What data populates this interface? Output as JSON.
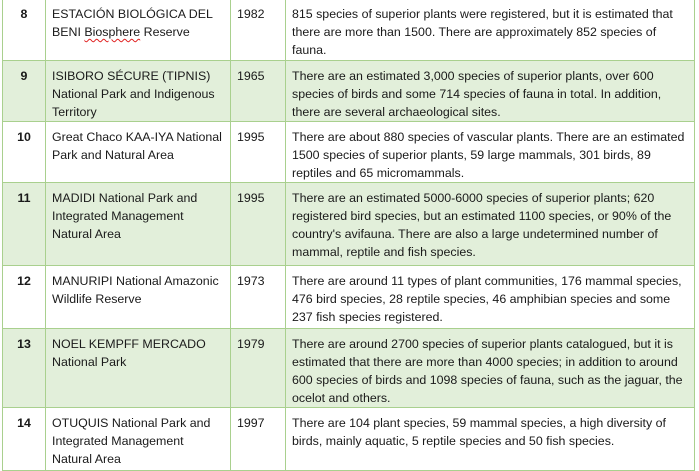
{
  "rows": [
    {
      "number": "8",
      "name": "ESTACIÓN BIOLÓGICA DEL BENI",
      "name_suffix": "Biosphere",
      "name_end": " Reserve",
      "year": "1982",
      "description": "815 species of superior plants were registered, but it is estimated that there are more than 1500. There are approximately 852 species of fauna.",
      "shaded": false
    },
    {
      "number": "9",
      "name": "ISIBORO SÉCURE (TIPNIS) National Park and Indigenous Territory",
      "year": "1965",
      "description": "There are an estimated 3,000 species of superior plants, over 600 species of birds and some 714 species of fauna in total. In addition, there are several archaeological sites.",
      "shaded": true
    },
    {
      "number": "10",
      "name": "Great Chaco KAA-IYA National Park and Natural Area",
      "year": "1995",
      "description": "There are about 880 species of vascular plants. There are an estimated 1500 species of superior plants, 59 large mammals, 301 birds, 89 reptiles and 65 micromammals.",
      "shaded": false
    },
    {
      "number": "11",
      "name": "MADIDI National Park and Integrated Management Natural Area",
      "year": "1995",
      "description": "There are an estimated 5000-6000 species of superior plants; 620 registered bird species, but an estimated 1100 species, or 90% of the country's avifauna. There are also a large undetermined number of mammal, reptile and fish species.",
      "shaded": true
    },
    {
      "number": "12",
      "name": "MANURIPI National Amazonic Wildlife Reserve",
      "year": "1973",
      "description": "There are around 11 types of plant communities, 176 mammal species, 476 bird species, 28 reptile species, 46 amphibian species and some 237 fish species registered.",
      "shaded": false
    },
    {
      "number": "13",
      "name": "NOEL KEMPFF MERCADO National Park",
      "year": "1979",
      "description": "There are around 2700 species of superior plants catalogued, but it is estimated that there are more than 4000 species; in addition to around 600 species of birds and 1098 species of fauna, such as the jaguar, the ocelot and others.",
      "shaded": true
    },
    {
      "number": "14",
      "name": "OTUQUIS National Park and Integrated Management Natural Area",
      "year": "1997",
      "description": "There are 104 plant species, 59 mammal species, a high diversity of birds, mainly aquatic, 5 reptile species and 50 fish species.",
      "shaded": false
    }
  ]
}
